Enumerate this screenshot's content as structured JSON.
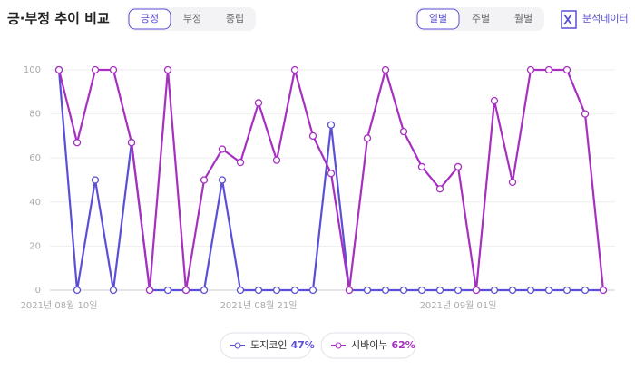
{
  "header": {
    "title": "긍·부정 추이 비교",
    "sentiment_tabs": [
      "긍정",
      "부정",
      "중립"
    ],
    "period_tabs": [
      "일별",
      "주별",
      "월별"
    ],
    "analysis_button": "분석데이터"
  },
  "chart_data": {
    "type": "line",
    "categories": [
      "2021년 08월 10일",
      null,
      null,
      null,
      null,
      null,
      null,
      null,
      null,
      null,
      null,
      "2021년 08월 21일",
      null,
      null,
      null,
      null,
      null,
      null,
      null,
      null,
      null,
      null,
      "2021년 09월 01일",
      null,
      null,
      null,
      null,
      null,
      null,
      null,
      null
    ],
    "series": [
      {
        "name": "도지코인",
        "summary": "47%",
        "color": "#5a4fd6",
        "values": [
          100,
          0,
          50,
          0,
          67,
          0,
          0,
          0,
          0,
          50,
          0,
          0,
          0,
          0,
          0,
          75,
          0,
          0,
          0,
          0,
          0,
          0,
          0,
          0,
          0,
          0,
          0,
          0,
          0,
          0,
          0
        ]
      },
      {
        "name": "시바이누",
        "summary": "62%",
        "color": "#a630c0",
        "values": [
          100,
          67,
          100,
          100,
          67,
          0,
          100,
          0,
          50,
          64,
          58,
          85,
          59,
          100,
          70,
          53,
          0,
          69,
          100,
          72,
          56,
          46,
          56,
          0,
          86,
          49,
          100,
          100,
          100,
          80,
          0
        ]
      }
    ],
    "ylim": [
      0,
      100
    ],
    "yticks": [
      0,
      20,
      40,
      60,
      80,
      100
    ],
    "grid": true
  }
}
